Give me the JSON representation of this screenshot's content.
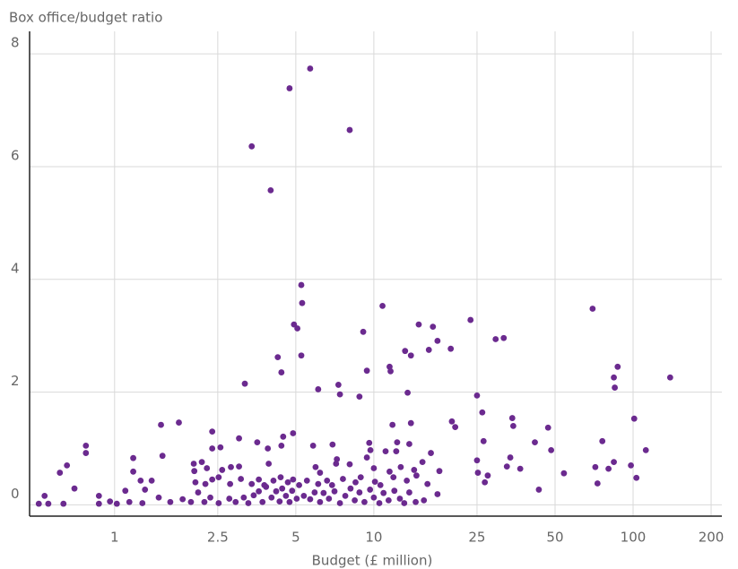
{
  "chart_data": {
    "type": "scatter",
    "y_label": "Box office/budget ratio",
    "x_label": "Budget (£ million)",
    "color": "#6b2a8f",
    "xscale": "log",
    "grid": true,
    "xlim": [
      0.47,
      220
    ],
    "ylim": [
      -0.2,
      8.4
    ],
    "xticks": [
      1,
      2.5,
      5,
      10,
      25,
      50,
      100,
      200
    ],
    "yticks": [
      0,
      2,
      4,
      6,
      8
    ],
    "x": [
      5.68,
      4.73,
      8.07,
      3.38,
      4.0,
      5.25,
      5.29,
      4.92,
      5.07,
      10.8,
      14.9,
      16.9,
      23.6,
      69.8,
      9.1,
      29.5,
      31.7,
      17.6,
      16.3,
      13.2,
      19.8,
      4.26,
      5.25,
      13.9,
      4.4,
      11.5,
      11.6,
      9.4,
      87.2,
      84.3,
      85,
      139,
      3.18,
      6.1,
      7.3,
      7.4,
      8.8,
      13.5,
      25,
      26.2,
      34.2,
      34.5,
      101,
      47,
      20,
      20.6,
      1.51,
      1.77,
      2.38,
      11.8,
      13.9,
      3.02,
      4.47,
      4.88,
      0.775,
      0.775,
      3.55,
      4.4,
      5.83,
      6.93,
      9.6,
      9.7,
      12.3,
      13.7,
      11.1,
      12.2,
      16.6,
      26.5,
      41.8,
      48.3,
      76.1,
      112,
      1.18,
      1.53,
      2.38,
      2.56,
      3.9,
      7.2,
      9.4,
      25,
      33.6,
      84.3,
      0.615,
      0.655,
      1.18,
      1.26,
      1.39,
      2.02,
      2.17,
      2.03,
      2.27,
      2.38,
      2.6,
      2.81,
      3.02,
      3.93,
      5.96,
      6.2,
      7.15,
      8.07,
      10.0,
      11.5,
      12.7,
      14.3,
      15.4,
      17.9,
      25.2,
      27.5,
      32.6,
      36.7,
      54.1,
      71.5,
      80.4,
      98.1,
      103,
      72.9,
      26.8,
      43.3,
      17.6,
      0.7,
      0.87,
      0.96,
      0.537,
      0.51,
      0.555,
      0.635,
      0.87,
      1.02,
      1.14,
      1.28,
      1.1,
      1.31,
      1.48,
      1.64,
      1.83,
      1.97,
      2.1,
      2.22,
      2.34,
      2.52,
      2.77,
      2.93,
      3.15,
      3.28,
      3.44,
      3.6,
      3.72,
      3.84,
      4.03,
      4.2,
      4.33,
      4.43,
      4.58,
      4.73,
      4.84,
      5.04,
      5.37,
      5.68,
      5.91,
      6.2,
      6.4,
      6.71,
      7.05,
      7.4,
      7.76,
      8.13,
      8.44,
      8.8,
      9.2,
      9.67,
      10,
      10.5,
      10.9,
      11.4,
      12,
      12.6,
      13.1,
      13.7,
      14.5,
      15.6,
      2.05,
      2.24,
      2.52,
      2.79,
      3.07,
      3.38,
      3.6,
      3.78,
      4.1,
      4.37,
      4.66,
      4.88,
      5.15,
      5.52,
      6.1,
      6.6,
      6.9,
      7.6,
      8.5,
      8.9,
      10.1,
      10.6,
      11.9,
      13.4,
      14.6,
      16.1
    ],
    "y": [
      7.74,
      7.39,
      6.65,
      6.36,
      5.58,
      3.9,
      3.58,
      3.2,
      3.13,
      3.53,
      3.2,
      3.16,
      3.28,
      3.48,
      3.07,
      2.94,
      2.96,
      2.91,
      2.75,
      2.73,
      2.77,
      2.62,
      2.65,
      2.65,
      2.35,
      2.45,
      2.37,
      2.38,
      2.45,
      2.26,
      2.08,
      2.26,
      2.15,
      2.05,
      2.13,
      1.96,
      1.92,
      1.99,
      1.94,
      1.64,
      1.54,
      1.4,
      1.53,
      1.37,
      1.48,
      1.38,
      1.42,
      1.46,
      1.3,
      1.42,
      1.45,
      1.18,
      1.21,
      1.27,
      1.05,
      0.92,
      1.11,
      1.05,
      1.05,
      1.07,
      1.1,
      0.97,
      1.11,
      1.08,
      0.95,
      0.95,
      0.92,
      1.13,
      1.11,
      0.97,
      1.13,
      0.97,
      0.83,
      0.87,
      1.0,
      1.02,
      1.0,
      0.81,
      0.84,
      0.79,
      0.84,
      0.76,
      0.57,
      0.7,
      0.59,
      0.43,
      0.43,
      0.73,
      0.76,
      0.6,
      0.65,
      0.45,
      0.62,
      0.67,
      0.68,
      0.73,
      0.67,
      0.57,
      0.73,
      0.72,
      0.65,
      0.59,
      0.67,
      0.62,
      0.76,
      0.6,
      0.57,
      0.52,
      0.68,
      0.64,
      0.56,
      0.67,
      0.64,
      0.7,
      0.48,
      0.38,
      0.4,
      0.27,
      0.19,
      0.29,
      0.16,
      0.06,
      0.16,
      0.02,
      0.02,
      0.02,
      0.02,
      0.02,
      0.05,
      0.03,
      0.25,
      0.27,
      0.13,
      0.05,
      0.1,
      0.05,
      0.22,
      0.05,
      0.13,
      0.03,
      0.11,
      0.05,
      0.13,
      0.03,
      0.17,
      0.24,
      0.05,
      0.32,
      0.13,
      0.24,
      0.06,
      0.29,
      0.16,
      0.05,
      0.25,
      0.11,
      0.16,
      0.1,
      0.22,
      0.05,
      0.21,
      0.11,
      0.24,
      0.03,
      0.16,
      0.29,
      0.08,
      0.22,
      0.05,
      0.27,
      0.13,
      0.03,
      0.21,
      0.08,
      0.25,
      0.11,
      0.03,
      0.22,
      0.05,
      0.08,
      0.4,
      0.37,
      0.49,
      0.37,
      0.46,
      0.37,
      0.45,
      0.35,
      0.43,
      0.49,
      0.4,
      0.45,
      0.35,
      0.43,
      0.37,
      0.43,
      0.35,
      0.46,
      0.4,
      0.49,
      0.41,
      0.35,
      0.49,
      0.43,
      0.52,
      0.37
    ]
  }
}
